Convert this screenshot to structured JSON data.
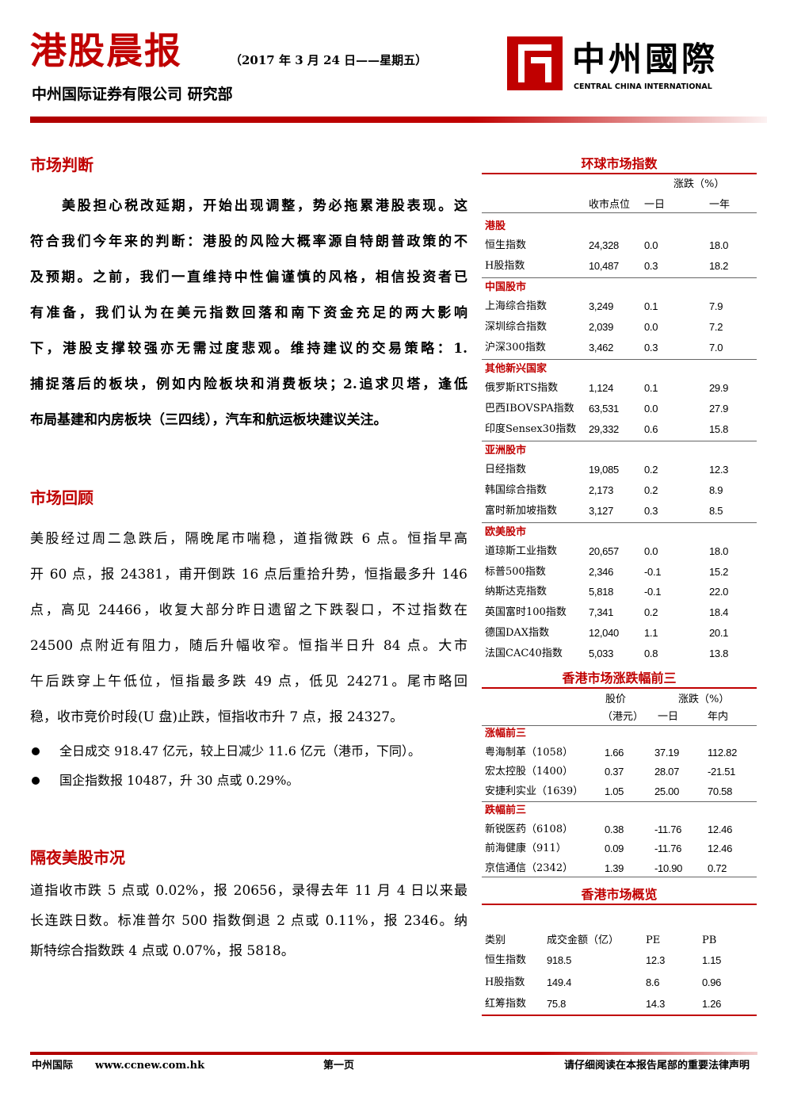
{
  "header": {
    "title": "港股晨报",
    "date": "（2017 年 3 月 24 日——星期五）",
    "company": "中州国际证券有限公司 研究部",
    "logo_cn": "中州國際",
    "logo_en": "CENTRAL CHINA INTERNATIONAL"
  },
  "sections": [
    {
      "heading": "市场判断",
      "lines": [
        "美股担心税改延期，开始出现调整，势必拖累港股表现。这",
        "符合我们今年来的判断：港股的风险大概率源自特朗普政策的不",
        "及预期。之前，我们一直维持中性偏谨慎的风格，相信投资者已",
        "有准备，我们认为在美元指数回落和南下资金充足的两大影响",
        "下，港股支撑较强亦无需过度悲观。维持建议的交易策略：1.",
        "捕捉落后的板块，例如内险板块和消费板块；2.追求贝塔，逢低",
        "布局基建和内房板块（三四线），汽车和航运板块建议关注。"
      ]
    },
    {
      "heading": "市场回顾",
      "lines": [
        "美股经过周二急跌后，隔晚尾市喘稳，道指微跌 6 点。恒指早高",
        "开 60 点，报 24381，甫开倒跌 16 点后重拾升势，恒指最多升 146",
        "点，高见 24466，收复大部分昨日遗留之下跌裂口，不过指数在",
        "24500 点附近有阻力，随后升幅收窄。恒指半日升 84 点。大市",
        "午后跌穿上午低位，恒指最多跌 49 点，低见 24271。尾市略回",
        "稳，收市竞价时段(U 盘)止跌，恒指收市升 7 点，报 24327。"
      ],
      "bullets": [
        "全日成交 918.47 亿元，较上日减少 11.6 亿元（港币，下同）。",
        "国企指数报 10487，升 30 点或 0.29%。"
      ]
    },
    {
      "heading": "隔夜美股市况",
      "lines": [
        "道指收市跌 5 点或 0.02%，报 20656，录得去年 11 月 4 日以来最",
        "长连跌日数。标准普尔 500 指数倒退 2 点或 0.11%，报 2346。纳",
        "斯特综合指数跌 4 点或 0.07%，报 5818。"
      ]
    }
  ],
  "global_indices": {
    "title": "环球市场指数",
    "change_header": "涨跌（%）",
    "columns": [
      "收市点位",
      "一日",
      "一年"
    ],
    "groups": [
      {
        "name": "港股",
        "rows": [
          [
            "恒生指数",
            "24,328",
            "0.0",
            "18.0"
          ],
          [
            "H股指数",
            "10,487",
            "0.3",
            "18.2"
          ]
        ]
      },
      {
        "name": "中国股市",
        "rows": [
          [
            "上海综合指数",
            "3,249",
            "0.1",
            "7.9"
          ],
          [
            "深圳综合指数",
            "2,039",
            "0.0",
            "7.2"
          ],
          [
            "沪深300指数",
            "3,462",
            "0.3",
            "7.0"
          ]
        ]
      },
      {
        "name": "其他新兴国家",
        "rows": [
          [
            "俄罗斯RTS指数",
            "1,124",
            "0.1",
            "29.9"
          ],
          [
            "巴西IBOVSPA指数",
            "63,531",
            "0.0",
            "27.9"
          ],
          [
            "印度Sensex30指数",
            "29,332",
            "0.6",
            "15.8"
          ]
        ]
      },
      {
        "name": "亚洲股市",
        "rows": [
          [
            "日经指数",
            "19,085",
            "0.2",
            "12.3"
          ],
          [
            "韩国综合指数",
            "2,173",
            "0.2",
            "8.9"
          ],
          [
            "富时新加坡指数",
            "3,127",
            "0.3",
            "8.5"
          ]
        ]
      },
      {
        "name": "欧美股市",
        "rows": [
          [
            "道琼斯工业指数",
            "20,657",
            "0.0",
            "18.0"
          ],
          [
            "标普500指数",
            "2,346",
            "-0.1",
            "15.2"
          ],
          [
            "纳斯达克指数",
            "5,818",
            "-0.1",
            "22.0"
          ],
          [
            "英国富时100指数",
            "7,341",
            "0.2",
            "18.4"
          ],
          [
            "德国DAX指数",
            "12,040",
            "1.1",
            "20.1"
          ],
          [
            "法国CAC40指数",
            "5,033",
            "0.8",
            "13.8"
          ]
        ]
      }
    ]
  },
  "hk_movers": {
    "title": "香港市场涨跌幅前三",
    "header_row1": [
      "股价",
      "涨跌（%）"
    ],
    "header_row2": [
      "（港元）",
      "一日",
      "年内"
    ],
    "groups": [
      {
        "name": "涨幅前三",
        "rows": [
          [
            "粤海制革（1058）",
            "1.66",
            "37.19",
            "112.82"
          ],
          [
            "宏太控股（1400）",
            "0.37",
            "28.07",
            "-21.51"
          ],
          [
            "安捷利实业（1639）",
            "1.05",
            "25.00",
            "70.58"
          ]
        ]
      },
      {
        "name": "跌幅前三",
        "rows": [
          [
            "新锐医药（6108）",
            "0.38",
            "-11.76",
            "12.46"
          ],
          [
            "前海健康（911）",
            "0.09",
            "-11.76",
            "12.46"
          ],
          [
            "京信通信（2342）",
            "1.39",
            "-10.90",
            "0.72"
          ]
        ]
      }
    ]
  },
  "hk_overview": {
    "title": "香港市场概览",
    "columns": [
      "类别",
      "成交金额（亿）",
      "PE",
      "PB"
    ],
    "rows": [
      [
        "恒生指数",
        "918.5",
        "12.3",
        "1.15"
      ],
      [
        "H股指数",
        "149.4",
        "8.6",
        "0.96"
      ],
      [
        "红筹指数",
        "75.8",
        "14.3",
        "1.26"
      ]
    ]
  },
  "footer": {
    "company": "中州国际",
    "url": "www.ccnew.com.hk",
    "page": "第一页",
    "notice": "请仔细阅读在本报告尾部的重要法律声明"
  }
}
